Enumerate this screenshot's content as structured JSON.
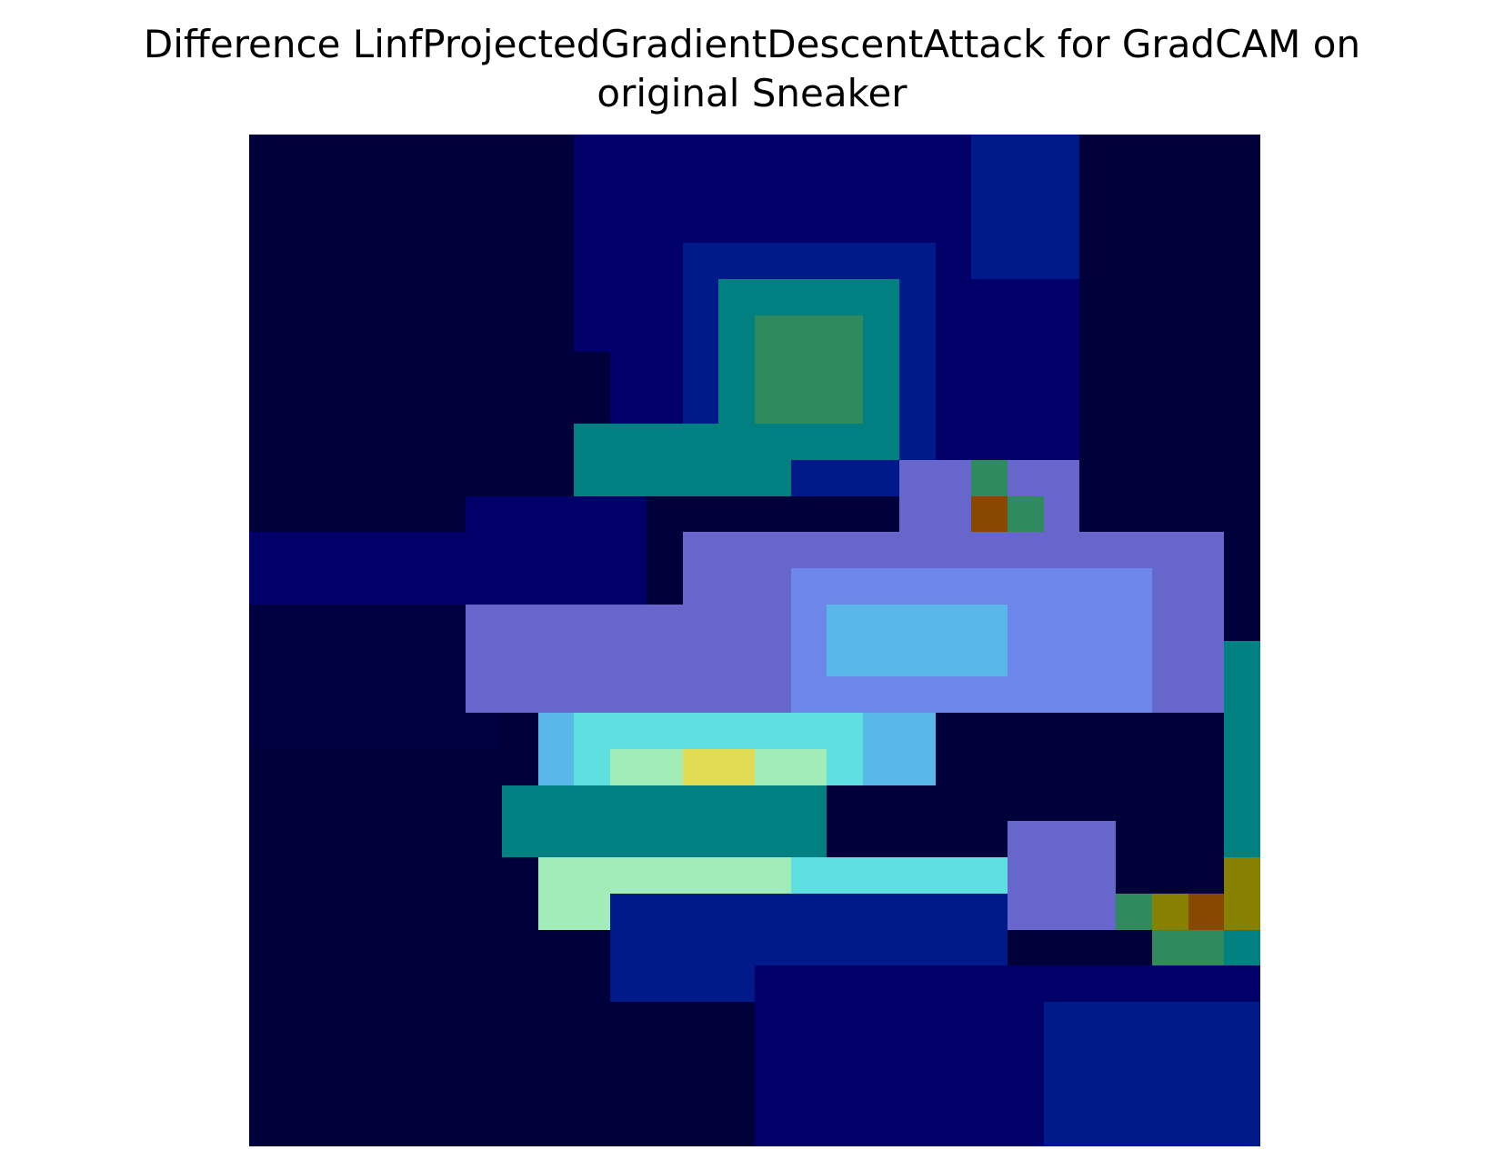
{
  "title": {
    "line1": "Difference LinfProjectedGradientDescentAttack for GradCAM on",
    "line2": "original Sneaker"
  },
  "heatmap": {
    "rows": 28,
    "cols": 28,
    "colors": {
      "bg": "#00003a",
      "deep": "#000040",
      "navy": "#000068",
      "blue": "#001a8a",
      "teal": "#008080",
      "green": "#2f8a5e",
      "lav": "#6666cc",
      "periw": "#6d86ea",
      "sky": "#5ab8e8",
      "cyan": "#5fe0e0",
      "mint": "#a2ecb8",
      "yellow": "#e2dc55",
      "olive": "#888000",
      "orange": "#884800"
    }
  }
}
